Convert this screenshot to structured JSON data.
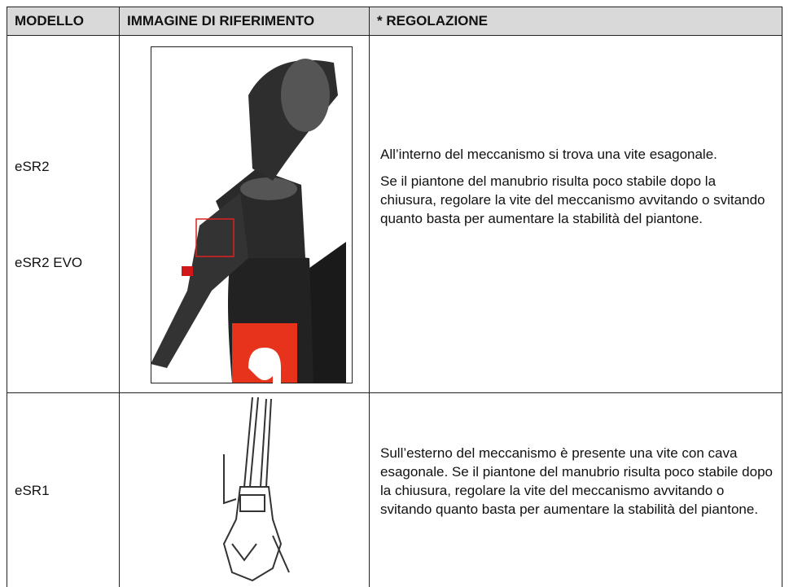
{
  "table": {
    "header": [
      "MODELLO",
      "IMMAGINE DI RIFERIMENTO",
      "* REGOLAZIONE"
    ],
    "rows": [
      {
        "models": [
          "eSR2",
          "eSR2 EVO"
        ],
        "paragraphs": [
          "All’interno del meccanismo si trova una vite esagonale.",
          "Se il piantone del manubrio risulta poco stabile dopo la chiusura, regolare la vite del meccanismo avvitando o svitando quanto basta per aumentare la stabilità del piantone."
        ]
      },
      {
        "models": [
          "eSR1"
        ],
        "paragraphs": [
          "Sull’esterno del meccanismo è presente una vite con cava esagonale. Se il piantone del manubrio risulta poco stabile dopo la chiusura, regolare la vite del meccanismo avvitando o svitando quanto basta per aumentare la stabilità del piantone."
        ]
      }
    ]
  }
}
